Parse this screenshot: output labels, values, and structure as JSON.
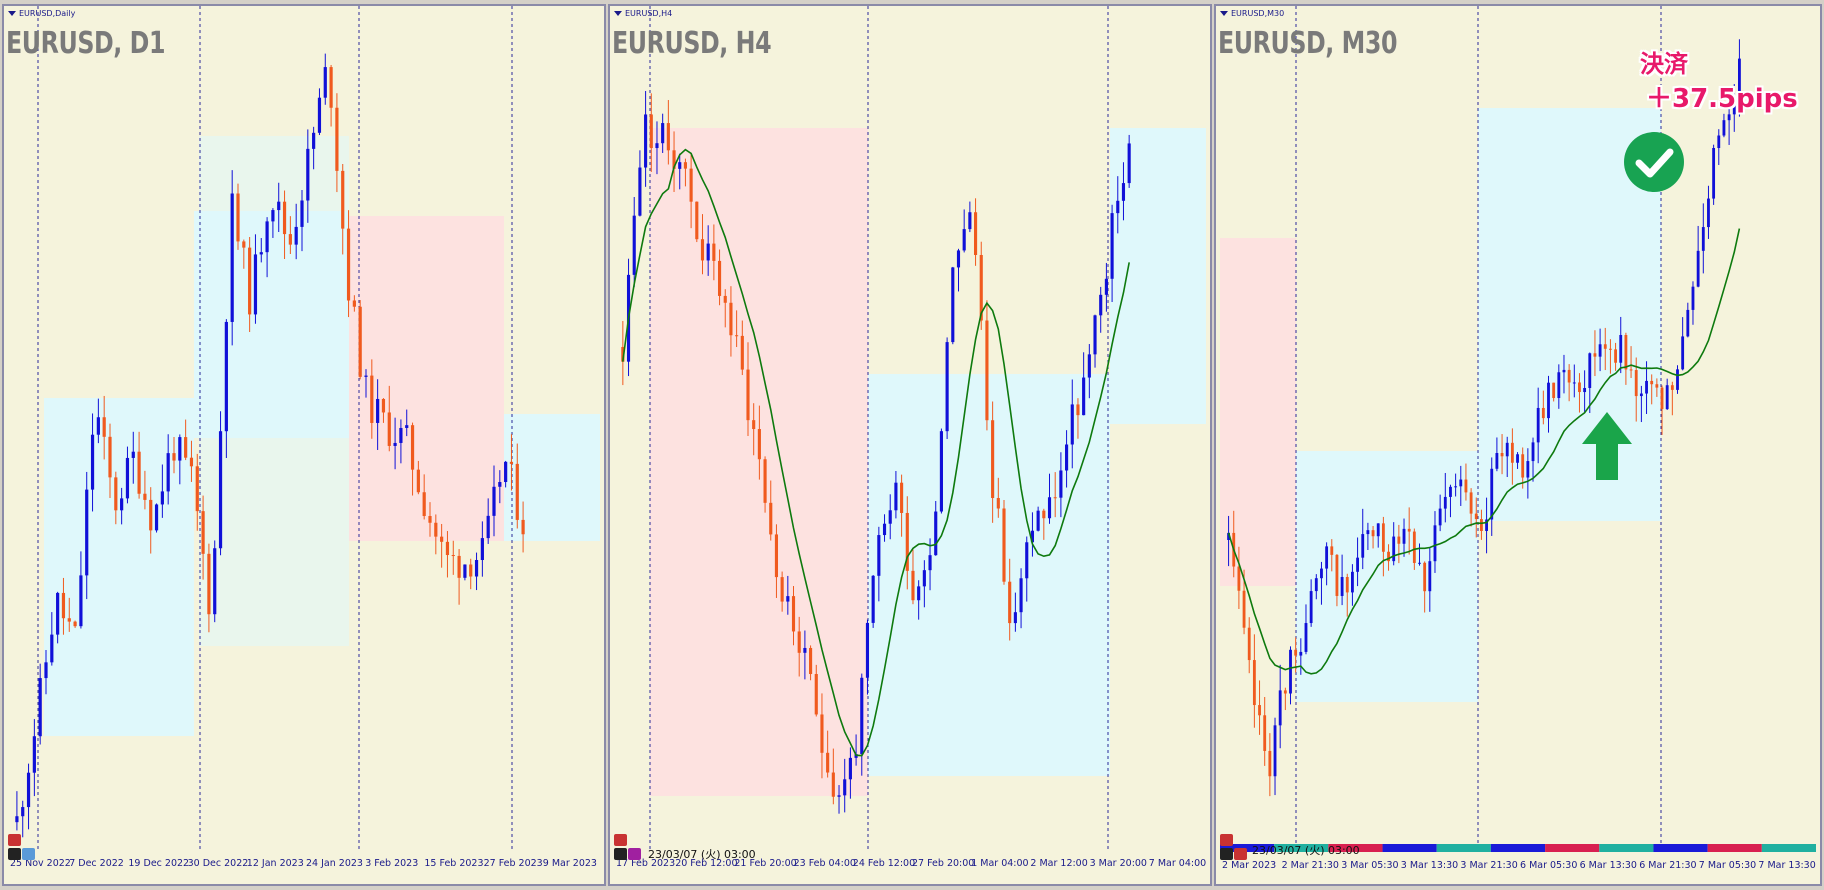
{
  "colors": {
    "background": "#f5f3dc",
    "bull": "#1010d8",
    "bear": "#f05a1e",
    "zone_blue": "#dff8fb",
    "zone_red": "#fde2e0",
    "ma": "#0e7a0e",
    "grid": "#2a2a9a",
    "badge_pink": "#e8196a",
    "check_green": "#18a352",
    "arrow_green": "#1aa54a"
  },
  "panes": [
    {
      "mini_title": "EURUSD,Daily",
      "title": "EURUSD, D1",
      "date_stamp": "",
      "x_labels": [
        "25 Nov 2022",
        "7 Dec 2022",
        "19 Dec 2022",
        "30 Dec 2022",
        "12 Jan 2023",
        "24 Jan 2023",
        "3 Feb 2023",
        "15 Feb 2023",
        "27 Feb 2023",
        "9 Mar 2023"
      ]
    },
    {
      "mini_title": "EURUSD,H4",
      "title": "EURUSD, H4",
      "date_stamp": "23/03/07 (火) 03:00",
      "x_labels": [
        "17 Feb 2023",
        "20 Feb 12:00",
        "21 Feb 20:00",
        "23 Feb 04:00",
        "24 Feb 12:00",
        "27 Feb 20:00",
        "1 Mar 04:00",
        "2 Mar 12:00",
        "3 Mar 20:00",
        "7 Mar 04:00"
      ]
    },
    {
      "mini_title": "EURUSD,M30",
      "title": "EURUSD, M30",
      "date_stamp": "23/03/07 (火) 03:00",
      "x_labels": [
        "2 Mar 2023",
        "2 Mar 21:30",
        "3 Mar 05:30",
        "3 Mar 13:30",
        "3 Mar 21:30",
        "6 Mar 05:30",
        "6 Mar 13:30",
        "6 Mar 21:30",
        "7 Mar 05:30",
        "7 Mar 13:30"
      ]
    }
  ],
  "annotation": {
    "line1": "決済",
    "line2": "＋37.5pips",
    "check_icon": "check-circle-icon",
    "arrow_icon": "up-arrow-icon"
  },
  "chart_data": [
    {
      "type": "candlestick",
      "title": "EURUSD, D1",
      "x_ticks": [
        "25 Nov 2022",
        "7 Dec 2022",
        "19 Dec 2022",
        "30 Dec 2022",
        "12 Jan 2023",
        "24 Jan 2023",
        "3 Feb 2023",
        "15 Feb 2023",
        "27 Feb 2023",
        "9 Mar 2023"
      ],
      "seed": 11,
      "path": [
        0.02,
        0.15,
        0.3,
        0.25,
        0.55,
        0.42,
        0.48,
        0.4,
        0.5,
        0.45,
        0.28,
        0.8,
        0.68,
        0.82,
        0.75,
        0.86,
        0.98,
        0.7,
        0.55,
        0.52,
        0.5,
        0.42,
        0.35,
        0.35,
        0.36,
        0.48,
        0.4
      ],
      "count": 88
    },
    {
      "type": "candlestick",
      "title": "EURUSD, H4",
      "x_ticks": [
        "17 Feb 2023",
        "20 Feb 12:00",
        "21 Feb 20:00",
        "23 Feb 04:00",
        "24 Feb 12:00",
        "27 Feb 20:00",
        "1 Mar 04:00",
        "2 Mar 12:00",
        "3 Mar 20:00",
        "7 Mar 04:00"
      ],
      "seed": 23,
      "path": [
        0.62,
        0.9,
        0.88,
        0.86,
        0.75,
        0.7,
        0.6,
        0.48,
        0.32,
        0.25,
        0.15,
        0.05,
        0.12,
        0.35,
        0.45,
        0.3,
        0.4,
        0.75,
        0.78,
        0.45,
        0.25,
        0.4,
        0.42,
        0.52,
        0.6,
        0.75,
        0.88
      ],
      "count": 90
    },
    {
      "type": "candlestick",
      "title": "EURUSD, M30",
      "x_ticks": [
        "2 Mar 2023",
        "2 Mar 21:30",
        "3 Mar 05:30",
        "3 Mar 13:30",
        "3 Mar 21:30",
        "6 Mar 05:30",
        "6 Mar 13:30",
        "6 Mar 21:30",
        "7 Mar 05:30",
        "7 Mar 13:30"
      ],
      "seed": 37,
      "path": [
        0.35,
        0.18,
        0.05,
        0.18,
        0.25,
        0.32,
        0.28,
        0.36,
        0.34,
        0.38,
        0.3,
        0.4,
        0.42,
        0.38,
        0.48,
        0.45,
        0.52,
        0.58,
        0.56,
        0.62,
        0.6,
        0.55,
        0.52,
        0.58,
        0.75,
        0.9,
        0.97
      ],
      "count": 100
    }
  ]
}
